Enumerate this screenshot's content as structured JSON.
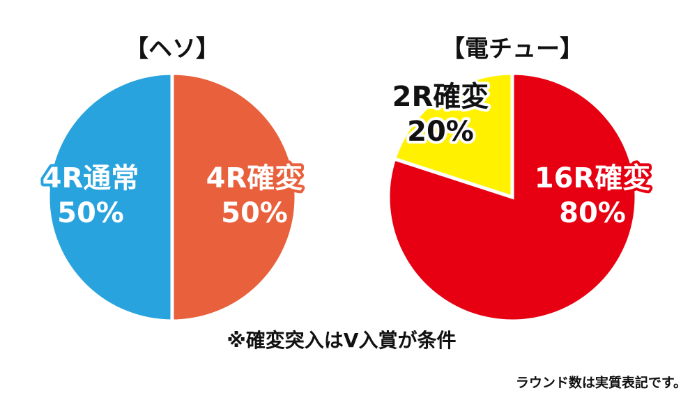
{
  "chart_data": [
    {
      "type": "pie",
      "title": "【ヘソ】",
      "categories": [
        "4R通常",
        "4R確変"
      ],
      "values": [
        50,
        50
      ],
      "value_labels": [
        "50%",
        "50%"
      ],
      "colors": [
        "#29a3dd",
        "#e8603c"
      ],
      "label_colors": [
        "#ffffff",
        "#ffffff"
      ]
    },
    {
      "type": "pie",
      "title": "【電チュー】",
      "categories": [
        "2R確変",
        "16R確変"
      ],
      "values": [
        20,
        80
      ],
      "value_labels": [
        "20%",
        "80%"
      ],
      "colors": [
        "#fff100",
        "#e60012"
      ],
      "label_colors": [
        "#111111",
        "#ffffff"
      ]
    }
  ],
  "notes": [
    "※確変突入はV入賞が条件",
    "ラウンド数は実質表記です。"
  ]
}
